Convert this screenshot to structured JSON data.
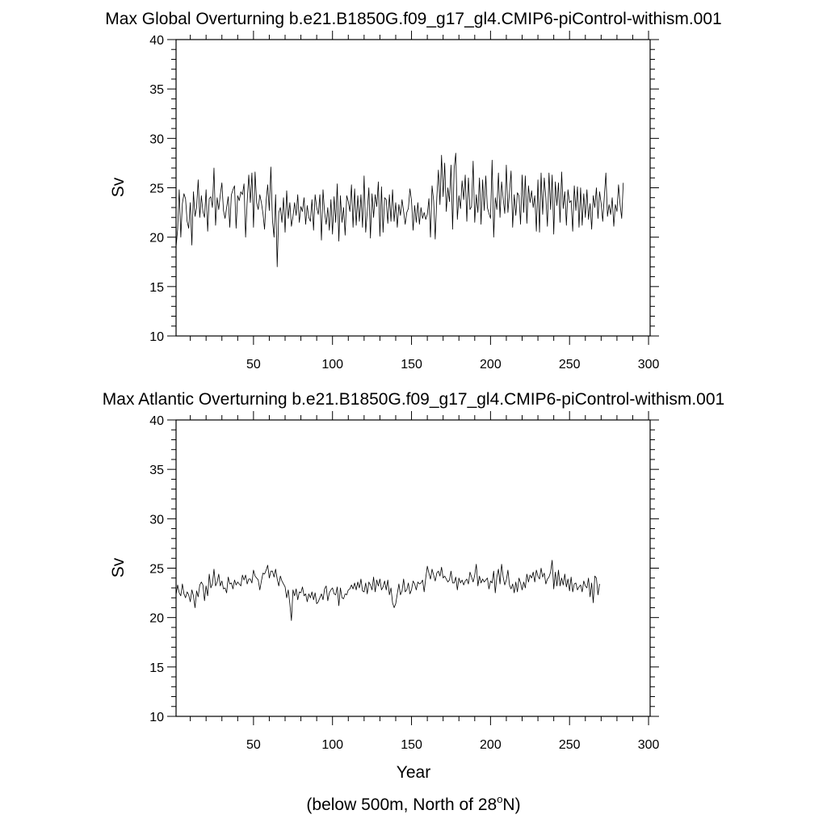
{
  "figure": {
    "xlabel": "Year",
    "footnote_prefix": "(below 500m, North of 28",
    "footnote_sup": "o",
    "footnote_suffix": "N)"
  },
  "chart_data": [
    {
      "type": "line",
      "title": "Max Global Overturning b.e21.B1850G.f09_g17_gl4.CMIP6-piControl-withism.001",
      "xlabel": "",
      "ylabel": "Sv",
      "xlim": [
        1,
        301
      ],
      "ylim": [
        10,
        40
      ],
      "xticks": [
        50,
        100,
        150,
        200,
        250,
        300
      ],
      "yticks": [
        10,
        15,
        20,
        25,
        30,
        35,
        40
      ],
      "series": [
        {
          "name": "Max Global Overturning",
          "x_start": 1,
          "x_step": 1,
          "values": [
            19.0,
            20.8,
            24.8,
            20.0,
            23.4,
            24.4,
            23.9,
            21.6,
            20.9,
            23.5,
            19.2,
            24.6,
            22.1,
            23.0,
            25.8,
            22.0,
            24.2,
            22.6,
            22.0,
            24.8,
            20.6,
            23.9,
            24.1,
            23.0,
            27.0,
            21.2,
            24.0,
            22.8,
            24.3,
            25.5,
            22.7,
            21.9,
            23.0,
            24.1,
            21.0,
            24.3,
            24.8,
            25.2,
            20.9,
            24.2,
            23.7,
            24.6,
            24.3,
            25.4,
            20.0,
            23.6,
            26.3,
            23.5,
            26.5,
            21.0,
            26.6,
            23.5,
            22.8,
            24.3,
            23.5,
            22.4,
            20.8,
            23.7,
            25.3,
            22.7,
            27.1,
            21.7,
            20.0,
            24.3,
            17.0,
            22.5,
            23.0,
            21.5,
            24.0,
            20.5,
            24.7,
            21.9,
            23.5,
            21.1,
            22.1,
            23.5,
            22.2,
            24.3,
            21.5,
            23.1,
            22.6,
            24.0,
            21.3,
            23.2,
            22.0,
            21.6,
            23.8,
            20.7,
            24.3,
            23.0,
            22.3,
            24.3,
            19.7,
            24.8,
            22.5,
            21.3,
            23.0,
            20.7,
            23.8,
            20.3,
            24.1,
            21.5,
            25.4,
            19.6,
            24.2,
            21.5,
            23.0,
            20.2,
            24.2,
            23.6,
            22.6,
            25.3,
            21.0,
            24.9,
            21.2,
            24.2,
            21.6,
            24.3,
            21.0,
            26.2,
            20.5,
            22.6,
            25.0,
            19.9,
            24.4,
            22.0,
            24.3,
            23.1,
            25.6,
            20.1,
            25.1,
            20.5,
            24.0,
            23.8,
            21.4,
            24.3,
            21.6,
            24.8,
            21.6,
            23.5,
            21.0,
            23.3,
            22.2,
            23.8,
            22.6,
            21.3,
            22.5,
            22.9,
            24.9,
            23.7,
            20.7,
            23.2,
            21.5,
            23.5,
            21.3,
            23.0,
            21.9,
            22.5,
            21.8,
            22.3,
            23.9,
            20.0,
            25.2,
            23.7,
            19.8,
            24.0,
            26.8,
            23.3,
            28.3,
            24.1,
            27.5,
            22.6,
            25.0,
            23.6,
            27.3,
            20.8,
            27.0,
            28.5,
            21.8,
            24.2,
            22.9,
            25.7,
            23.8,
            26.3,
            21.6,
            26.0,
            22.8,
            23.1,
            27.7,
            21.5,
            24.3,
            22.5,
            26.0,
            21.3,
            25.8,
            22.7,
            26.2,
            23.0,
            22.4,
            21.9,
            27.8,
            20.0,
            24.0,
            22.8,
            26.5,
            22.0,
            25.6,
            23.9,
            22.4,
            27.3,
            22.5,
            24.5,
            26.7,
            21.0,
            24.3,
            22.2,
            24.5,
            24.2,
            21.3,
            26.3,
            22.5,
            26.2,
            21.4,
            25.2,
            23.5,
            24.7,
            23.0,
            24.2,
            20.6,
            25.8,
            20.5,
            26.5,
            22.3,
            26.0,
            24.0,
            21.1,
            26.5,
            22.8,
            26.3,
            20.3,
            25.6,
            23.2,
            25.5,
            21.5,
            26.6,
            22.9,
            24.6,
            21.2,
            24.8,
            23.5,
            23.7,
            20.6,
            25.2,
            22.7,
            25.1,
            21.0,
            25.0,
            21.2,
            24.4,
            22.0,
            24.8,
            21.8,
            23.4,
            20.8,
            24.2,
            23.0,
            25.0,
            21.9,
            24.6,
            23.4,
            21.6,
            24.1,
            26.5,
            22.1,
            23.3,
            22.3,
            24.0,
            21.1,
            23.3,
            22.6,
            25.3,
            23.3,
            21.9,
            25.5
          ]
        }
      ]
    },
    {
      "type": "line",
      "title": "Max Atlantic Overturning b.e21.B1850G.f09_g17_gl4.CMIP6-piControl-withism.001",
      "xlabel": "Year",
      "ylabel": "Sv",
      "xlim": [
        1,
        301
      ],
      "ylim": [
        10,
        40
      ],
      "xticks": [
        50,
        100,
        150,
        200,
        250,
        300
      ],
      "yticks": [
        10,
        15,
        20,
        25,
        30,
        35,
        40
      ],
      "series": [
        {
          "name": "Max Atlantic Overturning",
          "x_start": 1,
          "x_step": 1,
          "values": [
            22.3,
            23.3,
            22.5,
            22.2,
            23.4,
            22.4,
            22.0,
            22.6,
            22.3,
            21.6,
            22.8,
            22.2,
            21.0,
            22.7,
            22.1,
            23.3,
            23.6,
            23.3,
            21.7,
            23.2,
            22.2,
            24.4,
            23.0,
            23.4,
            24.9,
            23.2,
            23.6,
            24.4,
            23.2,
            23.7,
            22.9,
            23.0,
            22.5,
            24.1,
            23.4,
            23.5,
            22.9,
            23.8,
            23.3,
            23.6,
            23.4,
            23.2,
            24.3,
            23.8,
            24.3,
            23.4,
            23.9,
            23.9,
            23.5,
            24.8,
            24.2,
            24.0,
            23.8,
            22.8,
            23.7,
            24.5,
            24.4,
            24.8,
            25.3,
            24.0,
            24.7,
            24.7,
            24.1,
            24.9,
            23.9,
            23.2,
            24.2,
            23.7,
            23.4,
            23.1,
            22.0,
            22.8,
            21.4,
            19.7,
            22.8,
            22.2,
            22.9,
            21.8,
            22.6,
            22.5,
            23.1,
            22.2,
            22.4,
            21.6,
            22.4,
            22.0,
            22.6,
            21.8,
            22.5,
            21.4,
            21.6,
            22.0,
            22.4,
            21.8,
            22.9,
            23.2,
            21.7,
            22.5,
            22.8,
            23.0,
            22.4,
            22.3,
            23.1,
            21.2,
            23.0,
            22.0,
            21.9,
            22.4,
            22.3,
            22.8,
            22.9,
            23.3,
            22.9,
            23.5,
            22.8,
            23.6,
            23.0,
            23.9,
            22.7,
            22.6,
            23.5,
            22.4,
            23.6,
            23.3,
            22.8,
            24.1,
            22.6,
            23.8,
            23.2,
            23.9,
            22.8,
            23.1,
            23.7,
            22.8,
            23.8,
            22.3,
            23.0,
            21.5,
            21.0,
            21.4,
            22.4,
            23.4,
            22.3,
            22.7,
            23.9,
            22.6,
            22.8,
            23.5,
            22.4,
            22.8,
            23.7,
            23.4,
            22.8,
            23.6,
            23.4,
            23.5,
            23.8,
            22.6,
            24.0,
            25.2,
            24.5,
            23.9,
            24.9,
            24.3,
            23.7,
            24.5,
            24.7,
            24.2,
            25.1,
            24.0,
            24.2,
            23.9,
            23.6,
            23.8,
            24.7,
            23.5,
            23.5,
            24.1,
            22.8,
            24.0,
            23.5,
            23.8,
            23.3,
            23.7,
            23.9,
            23.4,
            24.6,
            24.1,
            23.6,
            24.3,
            25.4,
            23.2,
            24.2,
            23.5,
            23.9,
            23.6,
            23.8,
            24.0,
            22.9,
            23.7,
            23.5,
            24.7,
            22.5,
            24.1,
            24.9,
            23.4,
            25.4,
            24.1,
            23.3,
            23.8,
            24.8,
            23.3,
            22.9,
            23.4,
            22.5,
            23.6,
            22.6,
            24.0,
            23.5,
            22.8,
            23.6,
            23.0,
            24.4,
            23.6,
            24.3,
            24.0,
            24.6,
            23.6,
            24.8,
            24.2,
            23.9,
            25.0,
            24.1,
            24.5,
            23.4,
            23.9,
            24.1,
            24.6,
            25.8,
            22.9,
            24.6,
            23.2,
            24.8,
            23.2,
            24.0,
            23.3,
            24.4,
            23.1,
            23.9,
            22.7,
            24.1,
            22.6,
            23.4,
            23.5,
            22.8,
            23.1,
            23.3,
            22.6,
            23.7,
            23.2,
            23.0,
            24.0,
            22.1,
            23.5,
            21.5,
            24.2,
            24.0,
            22.3,
            23.4
          ]
        }
      ]
    }
  ]
}
